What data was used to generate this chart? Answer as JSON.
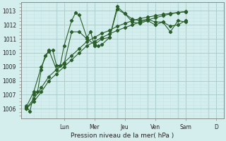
{
  "xlabel": "Pression niveau de la mer( hPa )",
  "background_color": "#d4eeee",
  "grid_color_major": "#aacece",
  "grid_color_minor": "#c4e4e4",
  "line_color": "#2a5e2a",
  "ylim": [
    1005.3,
    1013.6
  ],
  "xlim": [
    -0.3,
    13.0
  ],
  "yticks": [
    1006,
    1007,
    1008,
    1009,
    1010,
    1011,
    1012,
    1013
  ],
  "day_labels": [
    "Lun",
    "Mer",
    "Jeu",
    "Ven",
    "Sam",
    "D"
  ],
  "day_positions": [
    2.5,
    4.5,
    6.5,
    8.5,
    10.5,
    12.5
  ],
  "day_vline_positions": [
    2,
    4,
    6,
    8,
    10,
    12
  ],
  "series": [
    {
      "x": [
        0.0,
        0.25,
        0.5,
        0.75,
        1.0,
        1.25,
        1.5,
        1.75,
        2.0,
        2.25,
        2.5,
        3.0,
        3.25,
        3.5,
        4.0,
        4.25,
        4.5,
        4.75,
        5.0,
        5.5,
        6.0,
        6.5,
        7.0,
        7.5,
        8.0,
        8.5,
        9.0,
        9.5,
        10.0,
        10.5
      ],
      "y": [
        1006.2,
        1005.8,
        1007.0,
        1007.2,
        1008.8,
        1009.8,
        1010.1,
        1010.2,
        1009.1,
        1009.1,
        1010.5,
        1012.3,
        1012.85,
        1012.7,
        1011.1,
        1011.5,
        1010.5,
        1010.5,
        1010.6,
        1011.1,
        1013.1,
        1012.8,
        1012.2,
        1012.1,
        1012.3,
        1012.0,
        1012.2,
        1011.5,
        1012.3,
        1012.2
      ]
    },
    {
      "x": [
        0.0,
        0.5,
        1.0,
        1.5,
        2.0,
        2.5,
        3.0,
        3.5,
        4.0,
        4.5,
        5.0,
        5.5,
        6.0,
        6.5,
        7.0,
        7.5,
        8.0,
        8.5,
        9.0,
        9.5,
        10.0,
        10.5
      ],
      "y": [
        1006.1,
        1007.2,
        1009.0,
        1010.2,
        1008.8,
        1009.2,
        1011.5,
        1011.5,
        1011.0,
        1010.6,
        1011.0,
        1011.1,
        1013.3,
        1012.8,
        1012.4,
        1012.3,
        1012.4,
        1012.2,
        1012.2,
        1011.9,
        1012.0,
        1012.3
      ]
    },
    {
      "x": [
        0.0,
        0.5,
        1.0,
        1.5,
        2.0,
        2.5,
        3.0,
        3.5,
        4.0,
        4.5,
        5.0,
        5.5,
        6.0,
        6.5,
        7.0,
        7.5,
        8.0,
        8.5,
        9.0,
        9.5,
        10.0,
        10.5
      ],
      "y": [
        1006.0,
        1006.7,
        1007.5,
        1008.3,
        1008.8,
        1009.3,
        1009.8,
        1010.3,
        1010.8,
        1011.1,
        1011.4,
        1011.6,
        1011.9,
        1012.1,
        1012.3,
        1012.45,
        1012.55,
        1012.65,
        1012.75,
        1012.82,
        1012.88,
        1012.93
      ]
    },
    {
      "x": [
        0.0,
        0.5,
        1.0,
        1.5,
        2.0,
        2.5,
        3.0,
        3.5,
        4.0,
        4.5,
        5.0,
        5.5,
        6.0,
        6.5,
        7.0,
        7.5,
        8.0,
        8.5,
        9.0,
        9.5,
        10.0,
        10.5
      ],
      "y": [
        1006.0,
        1006.5,
        1007.2,
        1008.0,
        1008.5,
        1009.0,
        1009.5,
        1010.0,
        1010.5,
        1010.8,
        1011.1,
        1011.35,
        1011.6,
        1011.8,
        1012.0,
        1012.2,
        1012.35,
        1012.5,
        1012.65,
        1012.78,
        1012.88,
        1012.95
      ]
    }
  ]
}
